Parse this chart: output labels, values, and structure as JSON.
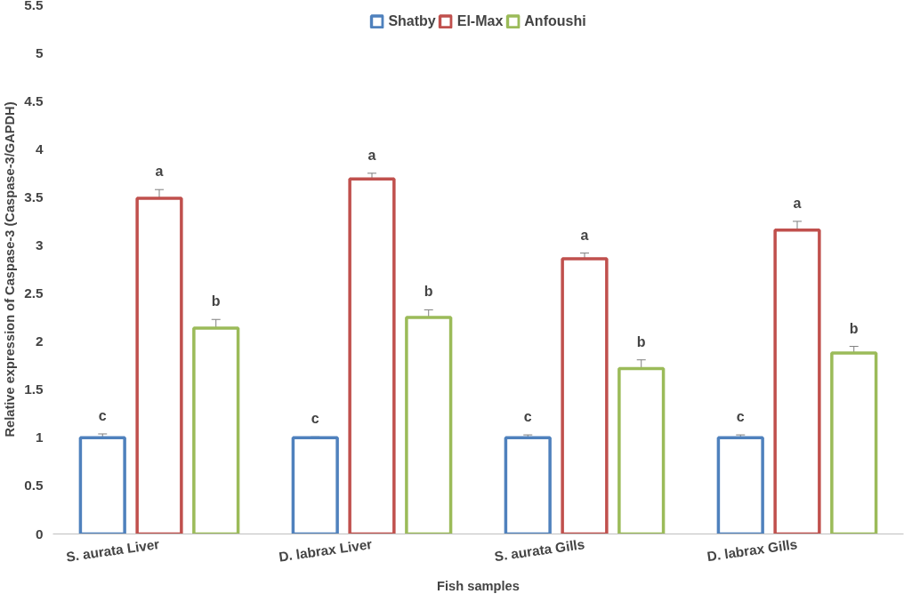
{
  "chart_data": {
    "type": "bar",
    "categories": [
      "S. aurata Liver",
      "D. labrax Liver",
      "S. aurata Gills",
      "D. labrax Gills"
    ],
    "series": [
      {
        "name": "Shatby",
        "color": "#4f81bd",
        "values": [
          1.0,
          1.0,
          1.0,
          1.0
        ],
        "errors": [
          0.04,
          0.01,
          0.03,
          0.03
        ]
      },
      {
        "name": "El-Max",
        "color": "#c0504d",
        "values": [
          3.49,
          3.69,
          2.86,
          3.16
        ],
        "errors": [
          0.09,
          0.06,
          0.06,
          0.09
        ]
      },
      {
        "name": "Anfoushi",
        "color": "#9bbb59",
        "values": [
          2.14,
          2.25,
          1.72,
          1.88
        ],
        "errors": [
          0.09,
          0.08,
          0.09,
          0.07
        ]
      }
    ],
    "xlabel": "Fish samples",
    "ylabel": "Relative expression of Caspase-3 (Caspase-3/GAPDH)",
    "ylim": [
      0,
      5.5
    ],
    "yticks": [
      0,
      0.5,
      1,
      1.5,
      2,
      2.5,
      3,
      3.5,
      4,
      4.5,
      5,
      5.5
    ],
    "grid": false,
    "legend": "top",
    "annotations": [
      "c",
      "a",
      "b",
      "c",
      "a",
      "b",
      "c",
      "a",
      "b",
      "c",
      "a",
      "b"
    ]
  }
}
